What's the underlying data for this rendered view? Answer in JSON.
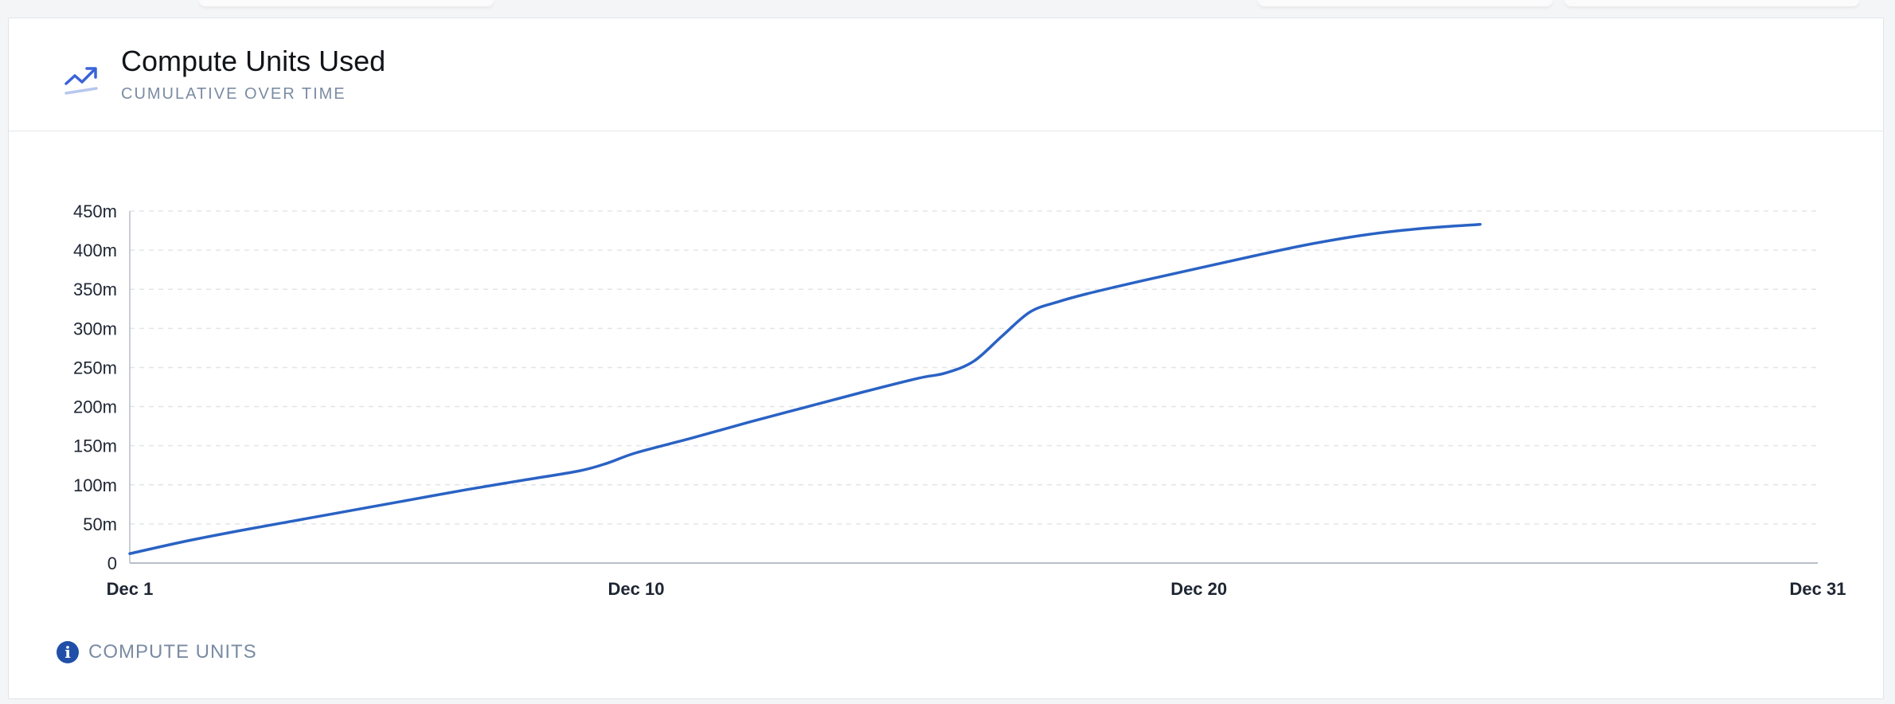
{
  "card": {
    "title": "Compute Units Used",
    "subtitle": "CUMULATIVE OVER TIME",
    "header_icon": "trending-up-icon",
    "legend_icon": "info-icon",
    "legend_label": "COMPUTE UNITS"
  },
  "colors": {
    "line": "#2a62c4",
    "accent": "#3a63d8",
    "grid": "#e2e5e9",
    "axis": "#b8bec7",
    "tick_text": "#1e2633",
    "subtitle": "#7a8ba3"
  },
  "chart_data": {
    "type": "line",
    "title": "Compute Units Used",
    "subtitle": "CUMULATIVE OVER TIME",
    "xlabel": "",
    "ylabel": "",
    "x_ticks": [
      {
        "day": 1,
        "label": "Dec 1"
      },
      {
        "day": 10,
        "label": "Dec 10"
      },
      {
        "day": 20,
        "label": "Dec 20"
      },
      {
        "day": 31,
        "label": "Dec 31"
      }
    ],
    "y_ticks": [
      {
        "value": 0,
        "label": "0"
      },
      {
        "value": 50,
        "label": "50m"
      },
      {
        "value": 100,
        "label": "100m"
      },
      {
        "value": 150,
        "label": "150m"
      },
      {
        "value": 200,
        "label": "200m"
      },
      {
        "value": 250,
        "label": "250m"
      },
      {
        "value": 300,
        "label": "300m"
      },
      {
        "value": 350,
        "label": "350m"
      },
      {
        "value": 400,
        "label": "400m"
      },
      {
        "value": 450,
        "label": "450m"
      }
    ],
    "xlim": [
      1,
      31
    ],
    "ylim": [
      0,
      450
    ],
    "y_unit": "m",
    "grid": true,
    "legend": "bottom-left",
    "series": [
      {
        "name": "COMPUTE UNITS",
        "x": [
          1,
          2,
          3,
          4,
          5,
          6,
          7,
          8,
          9,
          9.5,
          10,
          11,
          12,
          13,
          14,
          15,
          15.5,
          16,
          16.5,
          17,
          17.5,
          18,
          19,
          20,
          21,
          22,
          23,
          24,
          25
        ],
        "y": [
          12,
          28,
          42,
          55,
          68,
          81,
          94,
          106,
          118,
          128,
          141,
          160,
          180,
          199,
          218,
          236,
          243,
          258,
          290,
          321,
          334,
          344,
          361,
          377,
          393,
          408,
          420,
          428,
          433
        ]
      }
    ]
  }
}
